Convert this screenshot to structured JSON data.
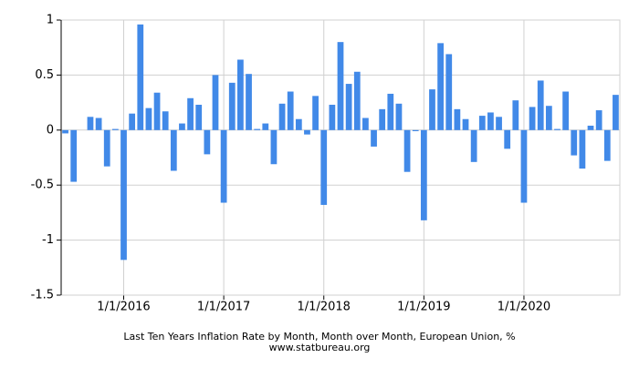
{
  "chart_data": {
    "type": "bar",
    "title": "Last Ten Years Inflation Rate by Month, Month over Month, European Union, %",
    "subtitle": "www.statbureau.org",
    "categories": [
      null,
      null,
      null,
      null,
      null,
      null,
      null,
      "1/1/2016",
      null,
      null,
      null,
      null,
      null,
      null,
      null,
      null,
      null,
      null,
      null,
      "1/1/2017",
      null,
      null,
      null,
      null,
      null,
      null,
      null,
      null,
      null,
      null,
      null,
      "1/1/2018",
      null,
      null,
      null,
      null,
      null,
      null,
      null,
      null,
      null,
      null,
      null,
      "1/1/2019",
      null,
      null,
      null,
      null,
      null,
      null,
      null,
      null,
      null,
      null,
      null,
      "1/1/2020",
      null,
      null,
      null,
      null,
      null,
      null,
      null,
      null,
      null,
      null,
      null
    ],
    "values": [
      -0.03,
      -0.47,
      0,
      0.12,
      0.11,
      -0.33,
      0.01,
      -1.18,
      0.15,
      0.96,
      0.2,
      0.34,
      0.17,
      -0.37,
      0.06,
      0.29,
      0.23,
      -0.22,
      0.5,
      -0.66,
      0.43,
      0.64,
      0.51,
      0.01,
      0.06,
      -0.31,
      0.24,
      0.35,
      0.1,
      -0.04,
      0.31,
      -0.68,
      0.23,
      0.8,
      0.42,
      0.53,
      0.11,
      -0.15,
      0.19,
      0.33,
      0.24,
      -0.38,
      -0.01,
      -0.82,
      0.37,
      0.79,
      0.69,
      0.19,
      0.1,
      -0.29,
      0.13,
      0.16,
      0.12,
      -0.17,
      0.27,
      -0.66,
      0.21,
      0.45,
      0.22,
      0.01,
      0.35,
      -0.23,
      -0.35,
      0.04,
      0.18,
      -0.28,
      0.32
    ],
    "color": "#4189e8",
    "ylim": [
      -1.5,
      1
    ],
    "yticks": [
      -1.5,
      -1,
      -0.5,
      0,
      0.5,
      1
    ],
    "grid": true
  }
}
